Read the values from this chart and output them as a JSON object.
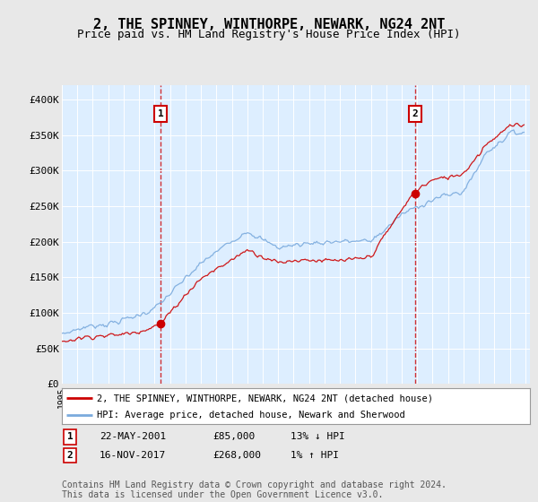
{
  "title": "2, THE SPINNEY, WINTHORPE, NEWARK, NG24 2NT",
  "subtitle": "Price paid vs. HM Land Registry's House Price Index (HPI)",
  "title_fontsize": 11,
  "subtitle_fontsize": 9,
  "bg_color": "#ddeeff",
  "outer_bg": "#e8e8e8",
  "grid_color": "#ffffff",
  "line1_color": "#cc0000",
  "line2_color": "#7aaadd",
  "ylim": [
    0,
    420000
  ],
  "yticks": [
    0,
    50000,
    100000,
    150000,
    200000,
    250000,
    300000,
    350000,
    400000
  ],
  "ytick_labels": [
    "£0",
    "£50K",
    "£100K",
    "£150K",
    "£200K",
    "£250K",
    "£300K",
    "£350K",
    "£400K"
  ],
  "year_start": 1995,
  "year_end": 2025,
  "sale1_year": 2001.38,
  "sale1_price": 85000,
  "sale2_year": 2017.87,
  "sale2_price": 268000,
  "legend1_label": "2, THE SPINNEY, WINTHORPE, NEWARK, NG24 2NT (detached house)",
  "legend2_label": "HPI: Average price, detached house, Newark and Sherwood",
  "table_row1": [
    "1",
    "22-MAY-2001",
    "£85,000",
    "13% ↓ HPI"
  ],
  "table_row2": [
    "2",
    "16-NOV-2017",
    "£268,000",
    "1% ↑ HPI"
  ],
  "footer": "Contains HM Land Registry data © Crown copyright and database right 2024.\nThis data is licensed under the Open Government Licence v3.0.",
  "footer_fontsize": 7
}
